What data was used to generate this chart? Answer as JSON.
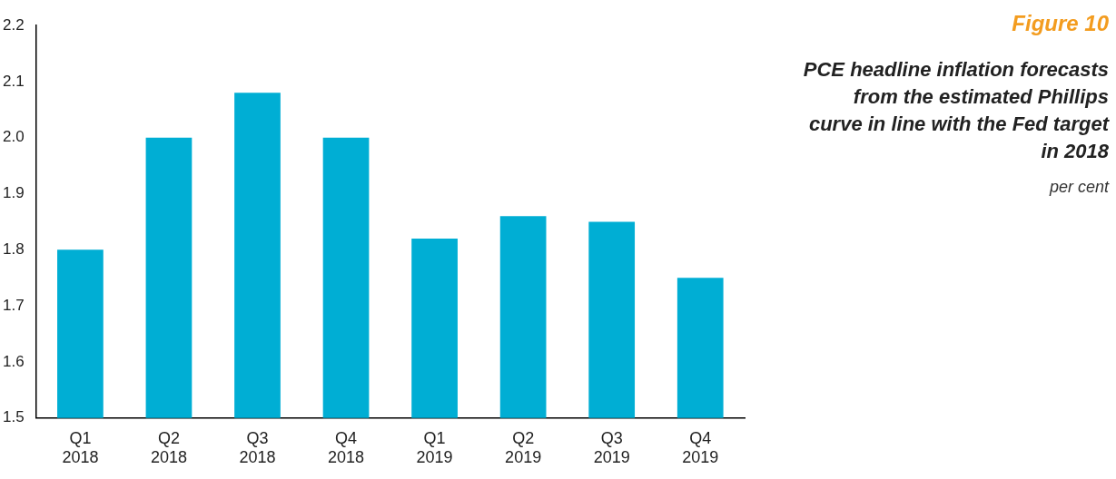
{
  "chart_data": {
    "type": "bar",
    "title": "PCE headline inflation forecasts from the estimated Phillips curve in line with the Fed target in 2018",
    "annotations": [
      "Figure 10",
      "per cent"
    ],
    "categories": [
      "Q1 2018",
      "Q2 2018",
      "Q3 2018",
      "Q4 2018",
      "Q1 2019",
      "Q2 2019",
      "Q3 2019",
      "Q4 2019"
    ],
    "values": [
      1.8,
      2.0,
      2.08,
      2.0,
      1.82,
      1.86,
      1.85,
      1.75
    ],
    "color": "#00aed4",
    "ylim": [
      1.5,
      2.2
    ],
    "yticks": [
      1.5,
      1.6,
      1.7,
      1.8,
      1.9,
      {
        "value": 2,
        "label": "2.0"
      },
      2.1,
      2.2
    ],
    "grid": false,
    "legend": false
  }
}
